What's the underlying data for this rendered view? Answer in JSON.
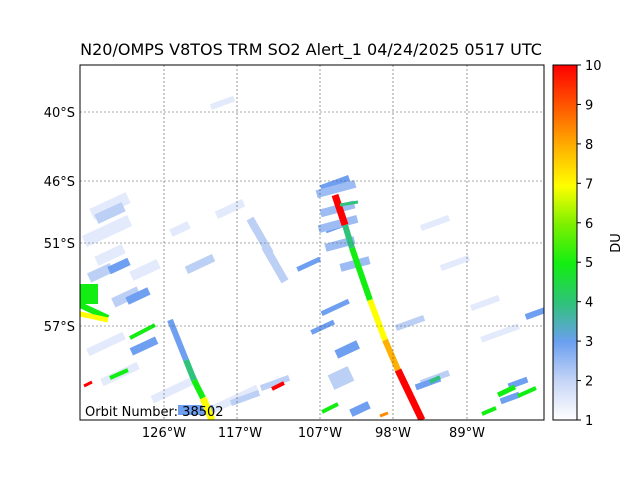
{
  "title": "N20/OMPS V8TOS TRM SO2 Alert_1 04/24/2025 0517 UTC",
  "orbit_label": "Orbit Number: 38502",
  "colorbar": {
    "label": "DU",
    "ticks": [
      "1",
      "2",
      "3",
      "4",
      "5",
      "6",
      "7",
      "8",
      "9",
      "10"
    ],
    "min": 1,
    "max": 10,
    "stops": [
      "#ffffff",
      "#c6d5f6",
      "#6b9ff0",
      "#2fc27a",
      "#12ee12",
      "#7cf000",
      "#ffff00",
      "#ffb000",
      "#ff5a00",
      "#ff0000"
    ]
  },
  "map": {
    "lat_ticks": [
      "40°S",
      "46°S",
      "51°S",
      "57°S"
    ],
    "lon_ticks": [
      "126°W",
      "117°W",
      "107°W",
      "98°W",
      "89°W"
    ]
  }
}
